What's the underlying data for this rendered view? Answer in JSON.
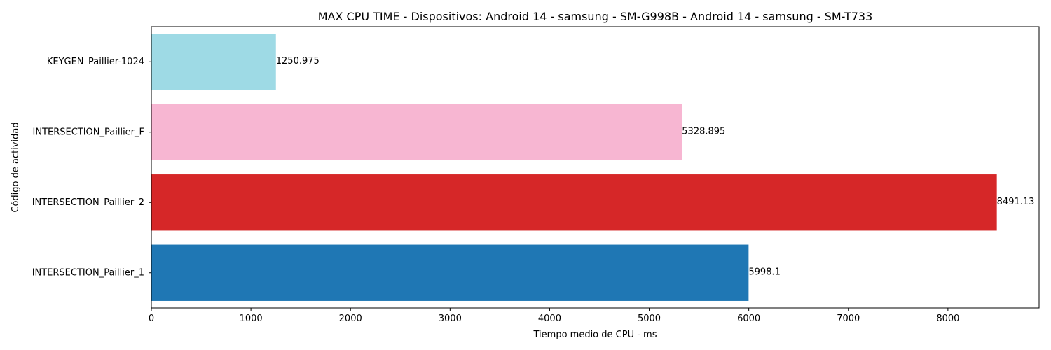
{
  "chart_data": {
    "type": "bar",
    "orientation": "horizontal",
    "title": "MAX CPU TIME - Dispositivos: Android 14 - samsung - SM-G998B - Android 14 - samsung - SM-T733",
    "xlabel": "Tiempo medio de CPU - ms",
    "ylabel": "Código de actividad",
    "categories": [
      "INTERSECTION_Paillier_1",
      "INTERSECTION_Paillier_2",
      "INTERSECTION_Paillier_F",
      "KEYGEN_Paillier-1024"
    ],
    "values": [
      5998.1,
      8491.13,
      5328.895,
      1250.975
    ],
    "value_labels": [
      "5998.1",
      "8491.13",
      "5328.895",
      "1250.975"
    ],
    "colors": [
      "#1f77b4",
      "#d62728",
      "#f7b6d2",
      "#9edae5"
    ],
    "xticks": [
      0,
      1000,
      2000,
      3000,
      4000,
      5000,
      6000,
      7000,
      8000
    ],
    "xlim": [
      0,
      8915.69
    ],
    "grid": false,
    "legend": false
  }
}
